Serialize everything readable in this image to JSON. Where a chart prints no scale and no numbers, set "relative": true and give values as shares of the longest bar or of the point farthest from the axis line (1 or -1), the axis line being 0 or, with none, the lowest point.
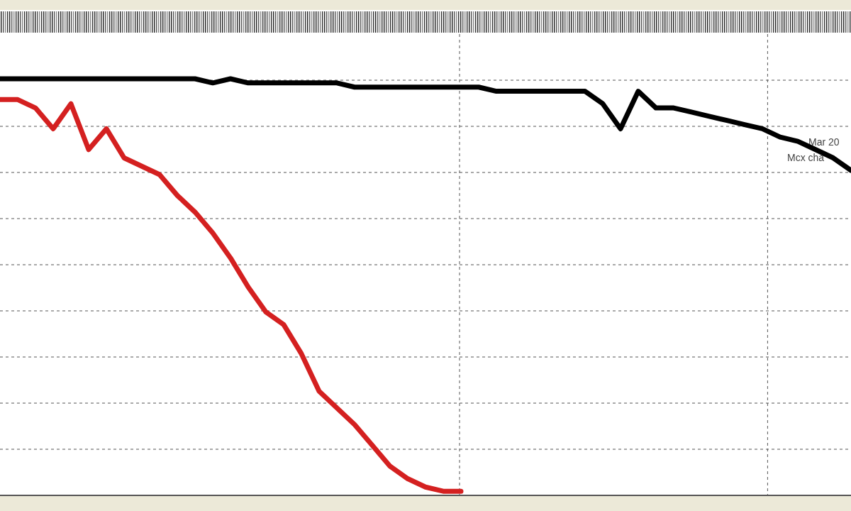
{
  "chart_data": {
    "type": "line",
    "relative": true,
    "grid": true,
    "marker": "none",
    "line_style": "solid",
    "categories": [
      null,
      null,
      null,
      null,
      null,
      null,
      null,
      null,
      null,
      null,
      null,
      null,
      null,
      null,
      null,
      null,
      null,
      null,
      null,
      null,
      null,
      null,
      null,
      null,
      null,
      null,
      null,
      null,
      null,
      null,
      null,
      null,
      null,
      null,
      null,
      null,
      null,
      null,
      null,
      null,
      null,
      null,
      null,
      null,
      null,
      null,
      null,
      null,
      null
    ],
    "series": [
      {
        "color": "#000000",
        "values": [
          1.0,
          1.0,
          1.0,
          1.0,
          1.0,
          1.0,
          1.0,
          1.0,
          1.0,
          1.0,
          1.0,
          1.0,
          0.99,
          1.0,
          0.99,
          0.99,
          0.99,
          0.99,
          0.99,
          0.99,
          0.98,
          0.98,
          0.98,
          0.98,
          0.98,
          0.98,
          0.98,
          0.98,
          0.97,
          0.97,
          0.97,
          0.97,
          0.97,
          0.97,
          0.94,
          0.88,
          0.97,
          0.93,
          0.93,
          0.92,
          0.91,
          0.9,
          0.89,
          0.88,
          0.86,
          0.85,
          0.83,
          0.81,
          0.78
        ]
      },
      {
        "color": "#d42020",
        "values": [
          0.95,
          0.95,
          0.93,
          0.88,
          0.94,
          0.83,
          0.88,
          0.81,
          0.79,
          0.77,
          0.72,
          0.68,
          0.63,
          0.57,
          0.5,
          0.44,
          0.41,
          0.34,
          0.25,
          0.21,
          0.17,
          0.12,
          0.07,
          0.04,
          0.02,
          0.01,
          0.01,
          null,
          null,
          null,
          null,
          null,
          null,
          null,
          null,
          null,
          null,
          null,
          null,
          null,
          null,
          null,
          null,
          null,
          null,
          null,
          null,
          null,
          null
        ]
      }
    ],
    "annotations": [
      "Mar 20",
      "Mcx cha"
    ]
  }
}
